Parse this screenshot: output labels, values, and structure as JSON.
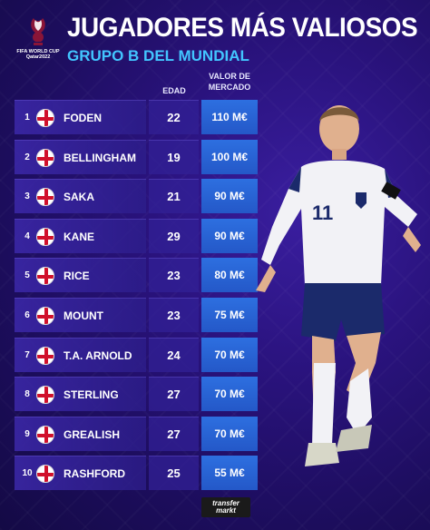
{
  "logo": {
    "text": "FIFA WORLD CUP Qatar2022"
  },
  "header": {
    "title": "JUGADORES MÁS VALIOSOS",
    "subtitle": "GRUPO B DEL MUNDIAL"
  },
  "columns": {
    "age": "EDAD",
    "value": "VALOR DE MERCADO"
  },
  "players": [
    {
      "rank": "1",
      "name": "FODEN",
      "age": "22",
      "value": "110 M€"
    },
    {
      "rank": "2",
      "name": "BELLINGHAM",
      "age": "19",
      "value": "100 M€"
    },
    {
      "rank": "3",
      "name": "SAKA",
      "age": "21",
      "value": "90 M€"
    },
    {
      "rank": "4",
      "name": "KANE",
      "age": "29",
      "value": "90 M€"
    },
    {
      "rank": "5",
      "name": "RICE",
      "age": "23",
      "value": "80 M€"
    },
    {
      "rank": "6",
      "name": "MOUNT",
      "age": "23",
      "value": "75 M€"
    },
    {
      "rank": "7",
      "name": "T.A. ARNOLD",
      "age": "24",
      "value": "70 M€"
    },
    {
      "rank": "8",
      "name": "STERLING",
      "age": "27",
      "value": "70 M€"
    },
    {
      "rank": "9",
      "name": "GREALISH",
      "age": "27",
      "value": "70 M€"
    },
    {
      "rank": "10",
      "name": "RASHFORD",
      "age": "25",
      "value": "55 M€"
    }
  ],
  "player_image": {
    "shirt_number": "11"
  },
  "brand": {
    "line1": "transfer",
    "line2": "markt"
  },
  "colors": {
    "background": "#2a137e",
    "accent": "#42c5ff",
    "value_cell": "#2d6fe0",
    "flag_red": "#d0102b"
  }
}
